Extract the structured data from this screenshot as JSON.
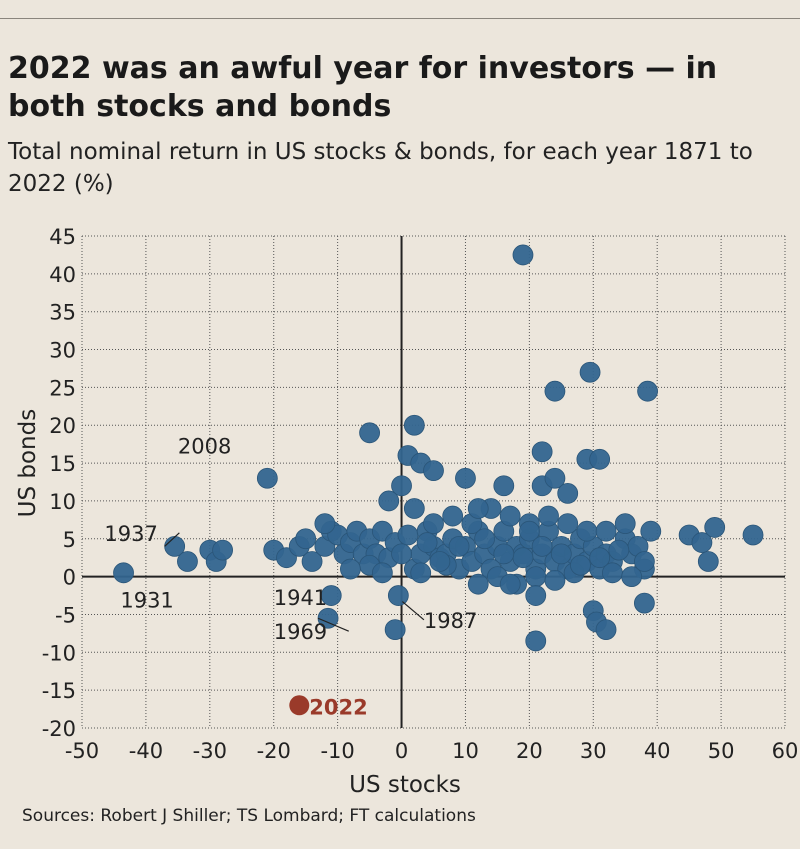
{
  "chart_data": {
    "type": "scatter",
    "title": "2022 was an awful year for investors — in both stocks and bonds",
    "subtitle": "Total nominal return in US stocks & bonds, for each year 1871 to 2022 (%)",
    "xlabel": "US stocks",
    "ylabel": "US bonds",
    "xlim": [
      -50,
      60
    ],
    "ylim": [
      -20,
      45
    ],
    "xticks": [
      "-50",
      "-40",
      "-30",
      "-20",
      "-10",
      "0",
      "10",
      "20",
      "30",
      "40",
      "50",
      "60"
    ],
    "yticks": [
      "45",
      "40",
      "35",
      "30",
      "25",
      "20",
      "15",
      "10",
      "5",
      "0",
      "-5",
      "-10",
      "-15",
      "-20"
    ],
    "grid": true,
    "source": "Sources: Robert J Shiller; TS Lombard; FT calculations",
    "highlight_color": "#9a3a2a",
    "point_color": "#33658f",
    "points": [
      [
        -43.5,
        0.5
      ],
      [
        -35.5,
        4
      ],
      [
        -33.5,
        2
      ],
      [
        -30,
        3.5
      ],
      [
        -29,
        2
      ],
      [
        -28,
        3.5
      ],
      [
        -20,
        3.5
      ],
      [
        -18,
        2.5
      ],
      [
        -16,
        4
      ],
      [
        -14,
        2
      ],
      [
        -12,
        4
      ],
      [
        -11,
        6
      ],
      [
        -10,
        5.5
      ],
      [
        -9,
        3
      ],
      [
        -8,
        4.5
      ],
      [
        -7,
        6
      ],
      [
        -6,
        3
      ],
      [
        -5,
        5
      ],
      [
        -4,
        3
      ],
      [
        -3,
        6
      ],
      [
        -2,
        2.5
      ],
      [
        -1,
        4.5
      ],
      [
        1,
        5.5
      ],
      [
        2,
        1
      ],
      [
        3,
        3
      ],
      [
        4,
        6
      ],
      [
        5,
        4
      ],
      [
        6,
        2.5
      ],
      [
        7,
        3
      ],
      [
        8,
        5
      ],
      [
        9,
        1
      ],
      [
        10,
        4
      ],
      [
        11,
        2
      ],
      [
        12,
        6
      ],
      [
        13,
        3
      ],
      [
        14,
        1
      ],
      [
        15,
        4
      ],
      [
        16,
        6
      ],
      [
        17,
        2
      ],
      [
        18,
        4
      ],
      [
        19,
        3
      ],
      [
        20,
        5
      ],
      [
        21,
        1
      ],
      [
        22,
        3
      ],
      [
        23,
        6
      ],
      [
        24,
        2
      ],
      [
        25,
        4
      ],
      [
        26,
        1
      ],
      [
        27,
        3
      ],
      [
        28,
        5
      ],
      [
        29,
        2
      ],
      [
        30,
        4
      ],
      [
        31,
        1
      ],
      [
        32,
        3
      ],
      [
        33,
        2
      ],
      [
        35,
        5
      ],
      [
        36,
        3
      ],
      [
        37,
        4
      ],
      [
        38,
        1
      ],
      [
        39,
        6
      ],
      [
        -12,
        7
      ],
      [
        2,
        9
      ],
      [
        5,
        7
      ],
      [
        8,
        8
      ],
      [
        11,
        7
      ],
      [
        14,
        9
      ],
      [
        17,
        8
      ],
      [
        20,
        7
      ],
      [
        23,
        8
      ],
      [
        26,
        7
      ],
      [
        29,
        6
      ],
      [
        32,
        6
      ],
      [
        35,
        7
      ],
      [
        3,
        0.5
      ],
      [
        7,
        1.5
      ],
      [
        12,
        -1
      ],
      [
        15,
        0
      ],
      [
        18,
        -1
      ],
      [
        21,
        0
      ],
      [
        24,
        -0.5
      ],
      [
        27,
        0.5
      ],
      [
        33,
        0.5
      ],
      [
        36,
        0
      ],
      [
        38,
        2
      ],
      [
        10,
        13
      ],
      [
        12,
        9
      ],
      [
        16,
        12
      ],
      [
        20,
        6
      ],
      [
        22,
        12
      ],
      [
        24,
        13
      ],
      [
        26,
        11
      ],
      [
        0,
        12
      ],
      [
        -2,
        10
      ],
      [
        1,
        16
      ],
      [
        3,
        15
      ],
      [
        5,
        14
      ],
      [
        2,
        20
      ],
      [
        -5,
        19
      ],
      [
        -21,
        13
      ],
      [
        19,
        42.5
      ],
      [
        22,
        16.5
      ],
      [
        24,
        24.5
      ],
      [
        29.5,
        27
      ],
      [
        38.5,
        24.5
      ],
      [
        29,
        15.5
      ],
      [
        31,
        15.5
      ],
      [
        45,
        5.5
      ],
      [
        47,
        4.5
      ],
      [
        49,
        6.5
      ],
      [
        55,
        5.5
      ],
      [
        48,
        2
      ],
      [
        38,
        -3.5
      ],
      [
        30,
        -4.5
      ],
      [
        30.5,
        -6
      ],
      [
        32,
        -7
      ],
      [
        21,
        -8.5
      ],
      [
        21,
        -2.5
      ],
      [
        17,
        -1
      ],
      [
        -0.5,
        -2.5
      ],
      [
        -1,
        -7
      ],
      [
        -11,
        -2.5
      ],
      [
        -11.5,
        -5.5
      ],
      [
        -5,
        1.5
      ],
      [
        -3,
        0.5
      ],
      [
        0,
        3
      ],
      [
        6,
        2
      ],
      [
        9,
        4
      ],
      [
        13,
        5
      ],
      [
        19,
        2.5
      ],
      [
        22,
        4
      ],
      [
        25,
        3
      ],
      [
        28,
        1.5
      ],
      [
        31,
        2.5
      ],
      [
        34,
        3.5
      ],
      [
        -8,
        1
      ],
      [
        -15,
        5
      ],
      [
        16,
        3
      ],
      [
        4,
        4.5
      ]
    ],
    "highlight_point": {
      "x": -16,
      "y": -17,
      "label": "2022"
    },
    "annotations": [
      {
        "label": "2008",
        "x": -37,
        "y": 15
      },
      {
        "label": "1937",
        "x": -35.5,
        "y": 4
      },
      {
        "label": "1931",
        "x": -43.5,
        "y": 0.5
      },
      {
        "label": "1941",
        "x": -11,
        "y": -2.5
      },
      {
        "label": "1969",
        "x": -11.5,
        "y": -5.5
      },
      {
        "label": "1987",
        "x": -0.5,
        "y": -2.5
      }
    ]
  }
}
